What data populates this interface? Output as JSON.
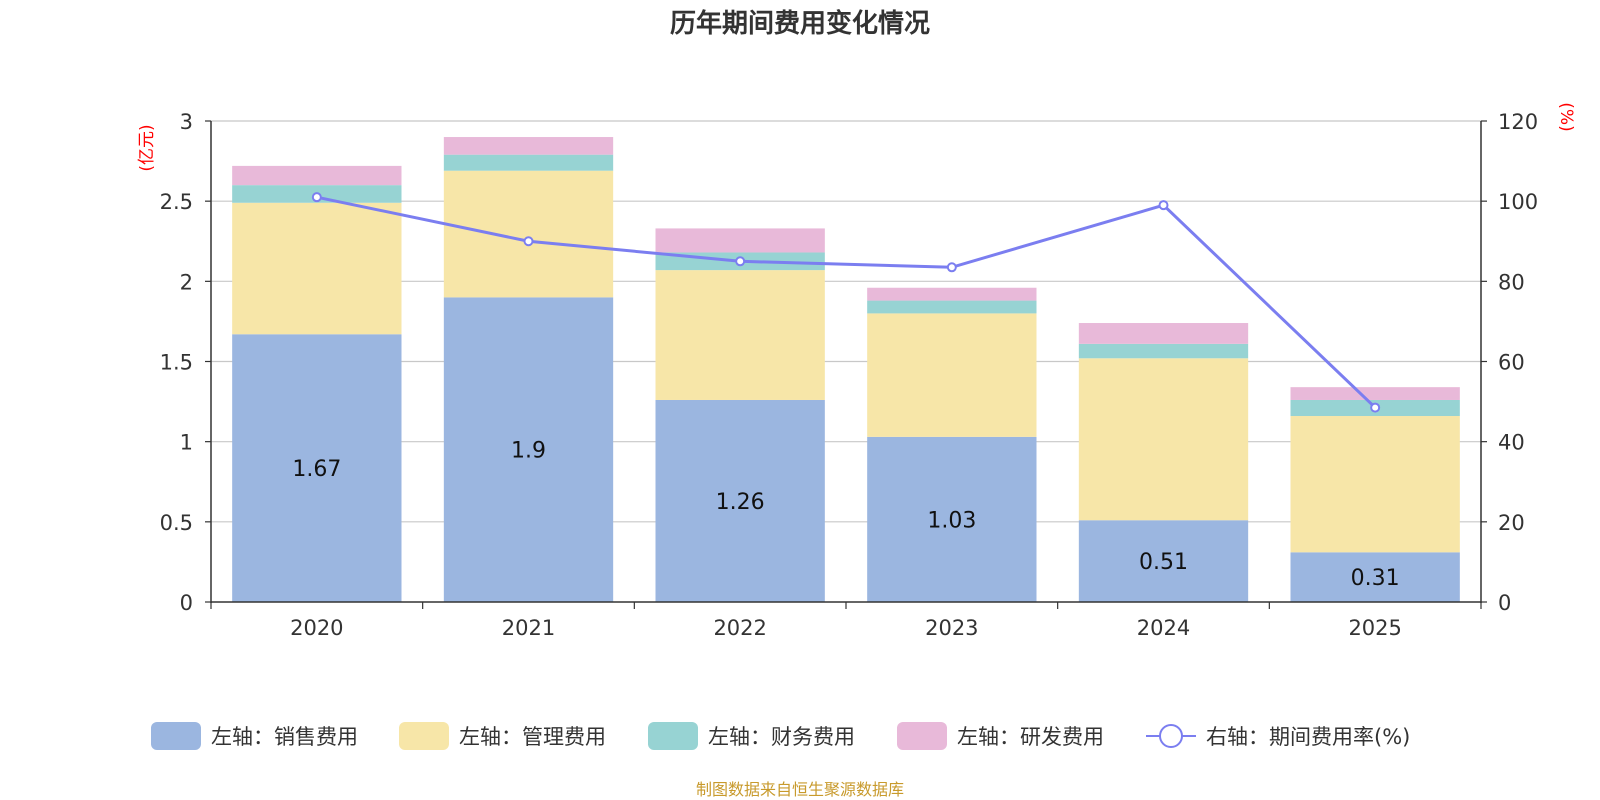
{
  "chart_data": {
    "type": "bar",
    "stacked": true,
    "title": "历年期间费用变化情况",
    "categories": [
      "2020",
      "2021",
      "2022",
      "2023",
      "2024",
      "2025"
    ],
    "left_axis": {
      "unit": "(亿元)",
      "ylim": [
        0,
        3
      ],
      "ticks": [
        "0",
        "0.5",
        "1",
        "1.5",
        "2",
        "2.5",
        "3"
      ],
      "tick_values": [
        0,
        0.5,
        1,
        1.5,
        2,
        2.5,
        3
      ]
    },
    "right_axis": {
      "unit": "(%)",
      "ylim": [
        0,
        120
      ],
      "ticks": [
        "0",
        "20",
        "40",
        "60",
        "80",
        "100",
        "120"
      ],
      "tick_values": [
        0,
        20,
        40,
        60,
        80,
        100,
        120
      ]
    },
    "series": [
      {
        "name": "左轴：销售费用",
        "axis": "left",
        "type": "bar",
        "color": "#9bb6e0",
        "values": [
          1.67,
          1.9,
          1.26,
          1.03,
          0.51,
          0.31
        ],
        "labels": [
          "1.67",
          "1.9",
          "1.26",
          "1.03",
          "0.51",
          "0.31"
        ]
      },
      {
        "name": "左轴：管理费用",
        "axis": "left",
        "type": "bar",
        "color": "#f7e6a8",
        "values": [
          0.82,
          0.79,
          0.81,
          0.77,
          1.01,
          0.85
        ]
      },
      {
        "name": "左轴：财务费用",
        "axis": "left",
        "type": "bar",
        "color": "#97d3d3",
        "values": [
          0.11,
          0.1,
          0.11,
          0.08,
          0.09,
          0.1
        ]
      },
      {
        "name": "左轴：研发费用",
        "axis": "left",
        "type": "bar",
        "color": "#e8b9d9",
        "values": [
          0.12,
          0.11,
          0.15,
          0.08,
          0.13,
          0.08
        ]
      },
      {
        "name": "右轴：期间费用率(%)",
        "axis": "right",
        "type": "line",
        "color": "#7b7ef0",
        "values": [
          101,
          90,
          85,
          83.5,
          99,
          48.5
        ]
      }
    ],
    "grid": true,
    "legend_position": "bottom"
  },
  "source": "制图数据来自恒生聚源数据库"
}
